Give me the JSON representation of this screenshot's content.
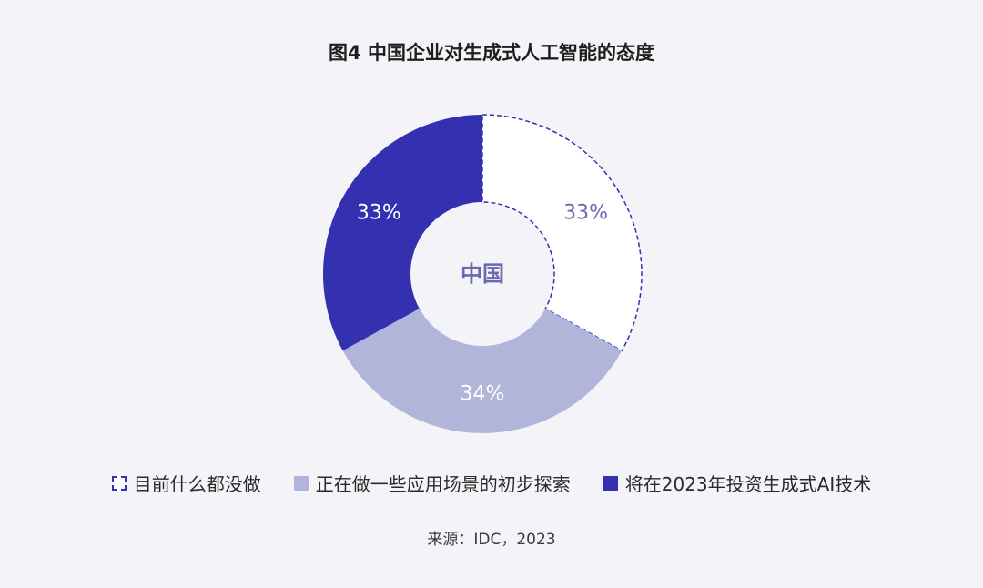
{
  "chart_data": {
    "type": "pie",
    "title": "图4 中国企业对生成式人工智能的态度",
    "center_label": "中国",
    "categories": [
      "目前什么都没做",
      "正在做一些应用场景的初步探索",
      "将在2023年投资生成式AI技术"
    ],
    "values": [
      33,
      34,
      33
    ],
    "value_labels": [
      "33%",
      "34%",
      "33%"
    ],
    "colors": [
      "#ffffff",
      "#b1b5d9",
      "#3431b0"
    ],
    "label_colors": [
      "#6a6ab0",
      "#ffffff",
      "#ffffff"
    ],
    "dashed_outline_color": "#3431b0",
    "donut": true,
    "legend_position": "bottom"
  },
  "source": "来源：IDC，2023"
}
